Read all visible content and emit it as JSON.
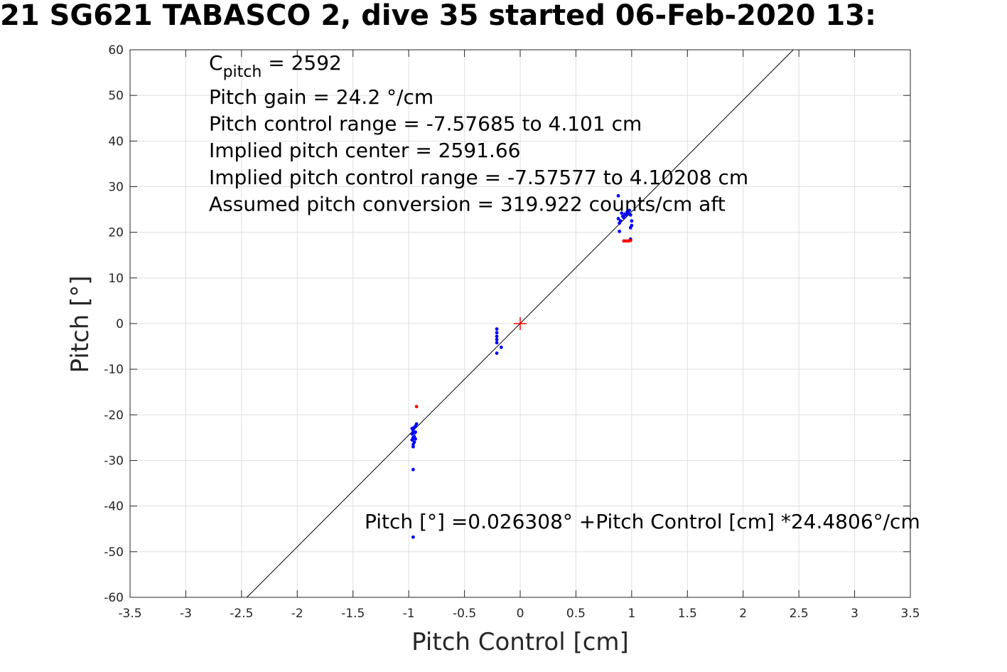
{
  "chart_data": {
    "type": "scatter",
    "title": "21 SG621 TABASCO 2, dive 35 started 06-Feb-2020 13:",
    "xlabel": "Pitch Control [cm]",
    "ylabel": "Pitch [°]",
    "xlim": [
      -3.5,
      3.5
    ],
    "ylim": [
      -60,
      60
    ],
    "xticks": [
      -3.5,
      -3,
      -2.5,
      -2,
      -1.5,
      -1,
      -0.5,
      0,
      0.5,
      1,
      1.5,
      2,
      2.5,
      3,
      3.5
    ],
    "yticks": [
      -60,
      -50,
      -40,
      -30,
      -20,
      -10,
      0,
      10,
      20,
      30,
      40,
      50,
      60
    ],
    "xtick_labels": [
      "-3.5",
      "-3",
      "-2.5",
      "-2",
      "-1.5",
      "-1",
      "-0.5",
      "0",
      "0.5",
      "1",
      "1.5",
      "2",
      "2.5",
      "3",
      "3.5"
    ],
    "ytick_labels": [
      "-60",
      "-50",
      "-40",
      "-30",
      "-20",
      "-10",
      "0",
      "10",
      "20",
      "30",
      "40",
      "50",
      "60"
    ],
    "grid": true,
    "series": [
      {
        "color": "#0000ff",
        "points": [
          [
            -0.97,
            -23.0
          ],
          [
            -0.96,
            -23.5
          ],
          [
            -0.95,
            -24.0
          ],
          [
            -0.94,
            -22.5
          ],
          [
            -0.96,
            -25.0
          ],
          [
            -0.97,
            -25.5
          ],
          [
            -0.95,
            -26.0
          ],
          [
            -0.96,
            -27.0
          ],
          [
            -0.94,
            -23.8
          ],
          [
            -0.93,
            -22.0
          ],
          [
            -0.95,
            -24.8
          ],
          [
            -0.97,
            -24.2
          ],
          [
            -0.96,
            -26.5
          ],
          [
            -0.95,
            -22.8
          ],
          [
            -0.94,
            -25.3
          ],
          [
            -0.96,
            -32.0
          ],
          [
            -0.96,
            -46.8
          ],
          [
            -0.21,
            -1.2
          ],
          [
            -0.21,
            -2.0
          ],
          [
            -0.21,
            -2.8
          ],
          [
            -0.21,
            -3.5
          ],
          [
            -0.21,
            -4.2
          ],
          [
            -0.21,
            -6.5
          ],
          [
            -0.17,
            -5.2
          ],
          [
            0.88,
            23.0
          ],
          [
            0.9,
            22.5
          ],
          [
            0.92,
            23.5
          ],
          [
            0.94,
            24.0
          ],
          [
            0.96,
            24.5
          ],
          [
            0.98,
            24.8
          ],
          [
            0.99,
            23.8
          ],
          [
            1.0,
            22.5
          ],
          [
            1.0,
            21.5
          ],
          [
            0.99,
            21.0
          ],
          [
            0.89,
            20.2
          ],
          [
            0.88,
            28.0
          ],
          [
            0.91,
            24.2
          ],
          [
            0.93,
            23.2
          ],
          [
            0.95,
            23.8
          ],
          [
            0.97,
            24.2
          ],
          [
            0.89,
            22.0
          ],
          [
            0.99,
            18.5
          ]
        ]
      },
      {
        "color": "#ff0000",
        "points": [
          [
            -0.93,
            -18.2
          ],
          [
            0.93,
            18.1
          ],
          [
            0.95,
            18.1
          ],
          [
            0.97,
            18.1
          ],
          [
            0.99,
            18.2
          ]
        ]
      }
    ],
    "fit_line": {
      "intercept": 0.026308,
      "slope": 24.4806
    },
    "center_marker": {
      "x": 0,
      "y": 0,
      "color": "#ff0000",
      "shape": "plus"
    },
    "annotations_top": [
      "Pitch gain = 24.2 °/cm",
      "Pitch control range = -7.57685 to 4.101 cm",
      "Implied pitch center = 2591.66",
      "Implied pitch control range = -7.57577 to 4.10208 cm",
      "Assumed pitch conversion = 319.922 counts/cm aft"
    ],
    "cpitch": {
      "letter": "C",
      "subscript": "pitch",
      "value": " = 2592"
    },
    "equation": "Pitch [°] =0.026308° +Pitch Control [cm] *24.4806°/cm"
  }
}
